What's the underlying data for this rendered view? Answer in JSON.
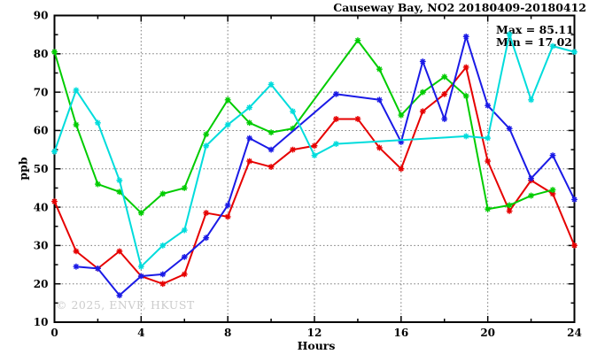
{
  "title": "Causeway Bay, NO2 20180409-20180412",
  "annotations": {
    "max_label": "Max = 85.11",
    "min_label": "Min = 17.02"
  },
  "watermark": "© 2025, ENVF, HKUST",
  "chart_data": {
    "type": "line",
    "title": "Causeway Bay, NO2 20180409-20180412",
    "xlabel": "Hours",
    "ylabel": "ppb",
    "xlim": [
      0,
      24
    ],
    "ylim": [
      10,
      90
    ],
    "x_major_ticks": [
      0,
      4,
      8,
      12,
      16,
      20,
      24
    ],
    "x_minor_step": 2,
    "y_major_ticks": [
      10,
      20,
      30,
      40,
      50,
      60,
      70,
      80,
      90
    ],
    "y_minor_step": 5,
    "grid": true,
    "legend_position": "none",
    "max_value": 85.11,
    "min_value": 17.02,
    "series": [
      {
        "name": "red",
        "color": "#e60000",
        "points": [
          [
            0,
            41.5
          ],
          [
            1,
            28.5
          ],
          [
            2,
            24
          ],
          [
            3,
            28.5
          ],
          [
            4,
            22
          ],
          [
            5,
            20
          ],
          [
            6,
            22.5
          ],
          [
            7,
            38.5
          ],
          [
            8,
            37.5
          ],
          [
            9,
            52
          ],
          [
            10,
            50.5
          ],
          [
            11,
            55
          ],
          [
            12,
            56
          ],
          [
            13,
            63
          ],
          [
            14,
            63
          ],
          [
            15,
            55.5
          ],
          [
            16,
            50
          ],
          [
            17,
            65
          ],
          [
            18,
            69.5
          ],
          [
            19,
            76.5
          ],
          [
            20,
            52
          ],
          [
            21,
            39
          ],
          [
            22,
            47
          ],
          [
            23,
            43.5
          ],
          [
            24,
            30
          ]
        ]
      },
      {
        "name": "green",
        "color": "#00cc00",
        "points": [
          [
            0,
            80.5
          ],
          [
            1,
            61.5
          ],
          [
            2,
            46
          ],
          [
            3,
            44
          ],
          [
            4,
            38.5
          ],
          [
            5,
            43.5
          ],
          [
            6,
            45
          ],
          [
            7,
            59
          ],
          [
            8,
            68
          ],
          [
            9,
            62
          ],
          [
            10,
            59.5
          ],
          [
            11,
            60.5
          ],
          [
            14,
            83.5
          ],
          [
            15,
            76
          ],
          [
            16,
            64
          ],
          [
            17,
            70
          ],
          [
            18,
            74
          ],
          [
            19,
            69
          ],
          [
            20,
            39.5
          ],
          [
            21,
            40.5
          ],
          [
            22,
            43
          ],
          [
            23,
            44.5
          ]
        ]
      },
      {
        "name": "blue",
        "color": "#1a1ae6",
        "points": [
          [
            1,
            24.5
          ],
          [
            2,
            24
          ],
          [
            3,
            17
          ],
          [
            4,
            22
          ],
          [
            5,
            22.5
          ],
          [
            6,
            27
          ],
          [
            7,
            32
          ],
          [
            8,
            40.5
          ],
          [
            9,
            58
          ],
          [
            10,
            55
          ],
          [
            13,
            69.5
          ],
          [
            15,
            68
          ],
          [
            16,
            57
          ],
          [
            17,
            78
          ],
          [
            18,
            63
          ],
          [
            19,
            84.5
          ],
          [
            20,
            66.5
          ],
          [
            21,
            60.5
          ],
          [
            22,
            47.5
          ],
          [
            23,
            53.5
          ],
          [
            24,
            42
          ]
        ]
      },
      {
        "name": "cyan",
        "color": "#00dcdc",
        "points": [
          [
            0,
            54.5
          ],
          [
            1,
            70.5
          ],
          [
            2,
            62
          ],
          [
            3,
            47
          ],
          [
            4,
            24.5
          ],
          [
            5,
            30
          ],
          [
            6,
            34
          ],
          [
            7,
            56
          ],
          [
            8,
            61.5
          ],
          [
            9,
            66
          ],
          [
            10,
            72
          ],
          [
            11,
            65
          ],
          [
            12,
            53.5
          ],
          [
            13,
            56.5
          ],
          [
            19,
            58.5
          ],
          [
            20,
            58
          ],
          [
            21,
            85.1
          ],
          [
            22,
            68
          ],
          [
            23,
            82
          ],
          [
            24,
            80.5
          ]
        ]
      }
    ]
  }
}
